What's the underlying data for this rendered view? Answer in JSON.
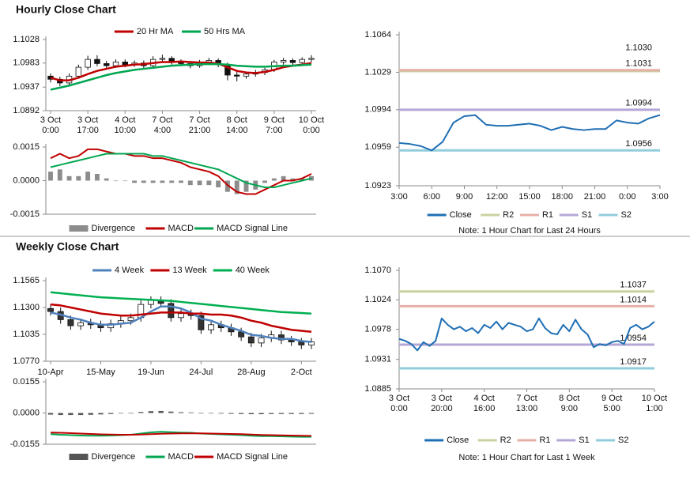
{
  "headings": [
    "Hourly Close Chart",
    "Weekly Close Chart"
  ],
  "chart_data": [
    {
      "type": "candlestick",
      "legend": "top",
      "categories": [
        [
          "3 Oct",
          "0:00"
        ],
        null,
        null,
        null,
        [
          "3 Oct",
          "17:00"
        ],
        null,
        null,
        null,
        [
          "4 Oct",
          "10:00"
        ],
        null,
        null,
        null,
        [
          "7 Oct",
          "4:00"
        ],
        null,
        null,
        null,
        [
          "7 Oct",
          "21:00"
        ],
        null,
        null,
        null,
        [
          "8 Oct",
          "14:00"
        ],
        null,
        null,
        null,
        [
          "9 Oct",
          "7:00"
        ],
        null,
        null,
        null,
        [
          "10 Oct",
          "0:00"
        ]
      ],
      "open": [
        1.0958,
        1.0952,
        1.0945,
        1.0958,
        1.0975,
        1.099,
        1.0982,
        1.0978,
        1.0985,
        1.098,
        1.0983,
        1.0978,
        1.099,
        1.0992,
        1.0985,
        1.0982,
        1.0978,
        1.0984,
        1.0988,
        1.098,
        1.096,
        1.0958,
        1.0962,
        1.0965,
        1.097,
        1.0985,
        1.0988,
        1.0984,
        1.099
      ],
      "high": [
        1.0963,
        1.0957,
        1.0963,
        1.098,
        1.0997,
        1.0998,
        1.0987,
        1.099,
        1.099,
        1.0988,
        1.0988,
        1.0996,
        1.0999,
        1.0996,
        1.099,
        1.0987,
        1.0989,
        1.0993,
        1.0992,
        1.0984,
        1.0966,
        1.0967,
        1.097,
        1.0974,
        1.0989,
        1.0993,
        1.0992,
        1.0994,
        1.0998
      ],
      "low": [
        1.0946,
        1.0939,
        1.0941,
        1.0953,
        1.097,
        1.0977,
        1.0973,
        1.0974,
        1.0975,
        1.0976,
        1.0973,
        1.0974,
        1.0985,
        1.098,
        1.0977,
        1.0973,
        1.0974,
        1.0979,
        1.0975,
        1.095,
        1.0948,
        1.0953,
        1.0957,
        1.096,
        1.0966,
        1.098,
        1.0979,
        1.0979,
        1.0985
      ],
      "close": [
        1.0952,
        1.0945,
        1.0958,
        1.0975,
        1.099,
        1.0982,
        1.0978,
        1.0985,
        1.098,
        1.0983,
        1.0978,
        1.099,
        1.0992,
        1.0985,
        1.0982,
        1.0978,
        1.0984,
        1.0988,
        1.098,
        1.096,
        1.0958,
        1.0962,
        1.0965,
        1.097,
        1.0985,
        1.0988,
        1.0984,
        1.099,
        1.0992
      ],
      "up_color": "#ffffff",
      "down_color": "#111111",
      "series": [
        {
          "name": "20 Hr MA",
          "color": "#c00000",
          "values": [
            1.0955,
            1.095,
            1.095,
            1.0955,
            1.0962,
            1.0968,
            1.0972,
            1.0976,
            1.0978,
            1.098,
            1.0981,
            1.0983,
            1.0985,
            1.0985,
            1.0986,
            1.0985,
            1.0984,
            1.0984,
            1.0982,
            1.0975,
            1.0968,
            1.0965,
            1.0964,
            1.0966,
            1.097,
            1.0975,
            1.0978,
            1.098,
            1.0983
          ]
        },
        {
          "name": "50 Hrs MA",
          "color": "#00a651",
          "values": [
            1.0932,
            1.0936,
            1.094,
            1.0945,
            1.095,
            1.0955,
            1.096,
            1.0964,
            1.0967,
            1.097,
            1.0972,
            1.0974,
            1.0976,
            1.0978,
            1.0979,
            1.098,
            1.0981,
            1.0981,
            1.0981,
            1.098,
            1.0978,
            1.0977,
            1.0976,
            1.0976,
            1.0977,
            1.0978,
            1.0978,
            1.0979,
            1.098
          ]
        }
      ],
      "ylim": [
        1.0892,
        1.1028
      ],
      "yticks": [
        1.0892,
        1.0937,
        1.0983,
        1.1028
      ]
    },
    {
      "type": "combo",
      "legend": "bottom",
      "series": [
        {
          "name": "Divergence",
          "type": "bar",
          "color": "#8c8c8c",
          "values": [
            0.0004,
            0.0005,
            0.0002,
            0.0002,
            0.0004,
            0.0003,
            0.0001,
            0,
            0,
            -0.0001,
            -0.0001,
            -0.0001,
            -0.0001,
            -0.0001,
            -0.0001,
            -0.0002,
            -0.0002,
            -0.0002,
            -0.0003,
            -0.0005,
            -0.0006,
            -0.0005,
            -0.0004,
            -0.0001,
            0.0001,
            0.0002,
            0.0001,
            0.0001,
            0.0002
          ]
        },
        {
          "name": "MACD",
          "type": "line",
          "color": "#c00000",
          "values": [
            0.001,
            0.0012,
            0.001,
            0.0011,
            0.0014,
            0.0014,
            0.0013,
            0.0012,
            0.0012,
            0.0011,
            0.0011,
            0.001,
            0.001,
            0.0009,
            0.0008,
            0.0006,
            0.0005,
            0.0004,
            0.0002,
            -0.0002,
            -0.0005,
            -0.0006,
            -0.0006,
            -0.0004,
            -0.0002,
            0,
            0,
            0.0001,
            0.0003
          ]
        },
        {
          "name": "MACD Signal Line",
          "type": "line",
          "color": "#00a651",
          "values": [
            0.0006,
            0.0007,
            0.0008,
            0.0009,
            0.001,
            0.0011,
            0.0012,
            0.0012,
            0.0012,
            0.0012,
            0.0012,
            0.0011,
            0.0011,
            0.001,
            0.0009,
            0.0008,
            0.0007,
            0.0006,
            0.0005,
            0.0003,
            0.0001,
            -0.0001,
            -0.0002,
            -0.0003,
            -0.0003,
            -0.0002,
            -0.0001,
            0,
            0.0001
          ]
        }
      ],
      "ylim": [
        -0.0015,
        0.0015
      ],
      "yticks": [
        -0.0015,
        {
          "value": 0,
          "label": "0.0000"
        },
        0.0015
      ]
    },
    {
      "type": "line",
      "legend": "bottom",
      "note": "Note: 1 Hour Chart for Last 24 Hours",
      "categories": [
        "3:00",
        null,
        null,
        "6:00",
        null,
        null,
        "9:00",
        null,
        null,
        "12:00",
        null,
        null,
        "15:00",
        null,
        null,
        "18:00",
        null,
        null,
        "21:00",
        null,
        null,
        "0:00",
        null,
        null,
        "3:00"
      ],
      "series": [
        {
          "name": "Close",
          "color": "#1f6fb4",
          "values": [
            1.0963,
            1.0962,
            1.096,
            1.0956,
            1.0964,
            1.0982,
            1.0988,
            1.0989,
            1.098,
            1.0979,
            1.0979,
            1.098,
            1.0981,
            1.0979,
            1.0975,
            1.0978,
            1.0976,
            1.0975,
            1.0976,
            1.0976,
            1.0984,
            1.0982,
            1.0981,
            1.0986,
            1.0989
          ]
        }
      ],
      "levels": [
        {
          "name": "R2",
          "color": "#c9d3a0",
          "value": 1.103,
          "value_label": "1.1030"
        },
        {
          "name": "R1",
          "color": "#e6b0a8",
          "value": 1.1031
        },
        {
          "name": "S1",
          "color": "#b4a7d6",
          "value": 1.0994
        },
        {
          "name": "S2",
          "color": "#92cddc",
          "value": 1.0956
        }
      ],
      "ylim": [
        1.0923,
        1.1064
      ],
      "yticks": [
        1.0923,
        1.0959,
        1.0994,
        1.1029,
        1.1064
      ]
    },
    {
      "type": "candlestick",
      "legend": "top",
      "categories": [
        "10-Apr",
        null,
        null,
        null,
        null,
        "15-May",
        null,
        null,
        null,
        null,
        "19-Jun",
        null,
        null,
        null,
        null,
        "24-Jul",
        null,
        null,
        null,
        null,
        "28-Aug",
        null,
        null,
        null,
        null,
        "2-Oct",
        null
      ],
      "open": [
        1.129,
        1.126,
        1.118,
        1.112,
        1.115,
        1.113,
        1.11,
        1.114,
        1.117,
        1.12,
        1.133,
        1.137,
        1.134,
        1.12,
        1.124,
        1.122,
        1.108,
        1.113,
        1.11,
        1.106,
        1.101,
        1.095,
        1.1,
        1.103,
        1.098,
        1.096,
        1.093
      ],
      "high": [
        1.133,
        1.13,
        1.122,
        1.119,
        1.119,
        1.117,
        1.118,
        1.121,
        1.124,
        1.137,
        1.141,
        1.141,
        1.138,
        1.128,
        1.128,
        1.126,
        1.117,
        1.117,
        1.114,
        1.11,
        1.105,
        1.104,
        1.107,
        1.107,
        1.102,
        1.1,
        1.1
      ],
      "low": [
        1.122,
        1.114,
        1.108,
        1.108,
        1.109,
        1.106,
        1.106,
        1.11,
        1.113,
        1.116,
        1.129,
        1.13,
        1.116,
        1.116,
        1.118,
        1.104,
        1.104,
        1.106,
        1.102,
        1.097,
        1.091,
        1.091,
        1.096,
        1.094,
        1.092,
        1.089,
        1.089
      ],
      "close": [
        1.126,
        1.118,
        1.112,
        1.115,
        1.113,
        1.11,
        1.114,
        1.117,
        1.12,
        1.133,
        1.137,
        1.134,
        1.12,
        1.124,
        1.122,
        1.108,
        1.113,
        1.11,
        1.106,
        1.101,
        1.095,
        1.1,
        1.103,
        1.098,
        1.096,
        1.093,
        1.096
      ],
      "up_color": "#ffffff",
      "down_color": "#333333",
      "series": [
        {
          "name": "4 Week",
          "color": "#4f81bd",
          "values": [
            1.125,
            1.123,
            1.12,
            1.118,
            1.115,
            1.113,
            1.113,
            1.114,
            1.115,
            1.12,
            1.126,
            1.131,
            1.131,
            1.129,
            1.125,
            1.119,
            1.117,
            1.113,
            1.11,
            1.107,
            1.103,
            1.102,
            1.1,
            1.099,
            1.099,
            1.097,
            1.096
          ]
        },
        {
          "name": "13 Week",
          "color": "#c00000",
          "values": [
            1.133,
            1.132,
            1.13,
            1.128,
            1.126,
            1.124,
            1.123,
            1.122,
            1.122,
            1.123,
            1.124,
            1.125,
            1.125,
            1.125,
            1.124,
            1.124,
            1.123,
            1.123,
            1.122,
            1.12,
            1.117,
            1.115,
            1.112,
            1.11,
            1.108,
            1.107,
            1.106
          ]
        },
        {
          "name": "40 Week",
          "color": "#00b050",
          "values": [
            1.145,
            1.144,
            1.143,
            1.142,
            1.141,
            1.14,
            1.1395,
            1.139,
            1.1385,
            1.138,
            1.1375,
            1.137,
            1.1365,
            1.1355,
            1.1345,
            1.1335,
            1.1325,
            1.1315,
            1.1305,
            1.1295,
            1.1285,
            1.1275,
            1.1265,
            1.1255,
            1.125,
            1.1245,
            1.124
          ]
        }
      ],
      "ylim": [
        1.077,
        1.1565
      ],
      "yticks": [
        {
          "value": 1.077,
          "label": "1.0770"
        },
        1.1035,
        {
          "value": 1.13,
          "label": "1.1300"
        },
        1.1565
      ]
    },
    {
      "type": "combo",
      "legend": "bottom",
      "series": [
        {
          "name": "Divergence",
          "type": "bar",
          "color": "#555555",
          "values": [
            -0.0008,
            -0.001,
            -0.001,
            -0.001,
            -0.0009,
            -0.0007,
            -0.0005,
            -0.0002,
            0,
            0.0005,
            0.0009,
            0.001,
            0.0007,
            0.0004,
            0.0003,
            -0.0001,
            -0.0002,
            -0.0003,
            -0.0004,
            -0.0005,
            -0.0006,
            -0.0006,
            -0.0005,
            -0.0005,
            -0.0005,
            -0.0005,
            -0.0004
          ]
        },
        {
          "name": "MACD",
          "type": "line",
          "color": "#00a651",
          "values": [
            -0.0105,
            -0.0108,
            -0.011,
            -0.0112,
            -0.0113,
            -0.0113,
            -0.0112,
            -0.011,
            -0.0108,
            -0.0102,
            -0.0096,
            -0.0093,
            -0.0095,
            -0.0097,
            -0.0098,
            -0.0102,
            -0.0104,
            -0.0106,
            -0.0108,
            -0.011,
            -0.0113,
            -0.0115,
            -0.0115,
            -0.0116,
            -0.0117,
            -0.0118,
            -0.0118
          ]
        },
        {
          "name": "MACD Signal Line",
          "type": "line",
          "color": "#c00000",
          "values": [
            -0.0097,
            -0.0098,
            -0.01,
            -0.0102,
            -0.0104,
            -0.0106,
            -0.0107,
            -0.0108,
            -0.0108,
            -0.0107,
            -0.0105,
            -0.0103,
            -0.0102,
            -0.0101,
            -0.0101,
            -0.0101,
            -0.0102,
            -0.0103,
            -0.0104,
            -0.0105,
            -0.0107,
            -0.0109,
            -0.011,
            -0.0111,
            -0.0112,
            -0.0113,
            -0.0114
          ]
        }
      ],
      "ylim": [
        -0.0155,
        0.0155
      ],
      "yticks": [
        -0.0155,
        {
          "value": 0,
          "label": "0.0000"
        },
        0.0155
      ]
    },
    {
      "type": "line",
      "legend": "bottom",
      "note": "Note: 1 Hour Chart for Last 1 Week",
      "categories": [
        [
          "3 Oct",
          "0:00"
        ],
        null,
        null,
        null,
        null,
        null,
        null,
        [
          "3 Oct",
          "20:00"
        ],
        null,
        null,
        null,
        null,
        null,
        null,
        [
          "4 Oct",
          "16:00"
        ],
        null,
        null,
        null,
        null,
        null,
        null,
        [
          "7 Oct",
          "13:00"
        ],
        null,
        null,
        null,
        null,
        null,
        null,
        [
          "8 Oct",
          "9:00"
        ],
        null,
        null,
        null,
        null,
        null,
        null,
        [
          "9 Oct",
          "5:00"
        ],
        null,
        null,
        null,
        null,
        null,
        null,
        [
          "10 Oct",
          "1:00"
        ]
      ],
      "series": [
        {
          "name": "Close",
          "color": "#1f6fb4",
          "values": [
            1.0963,
            1.096,
            1.0955,
            1.0945,
            1.0958,
            1.0952,
            1.096,
            1.0995,
            1.0985,
            1.0978,
            1.0982,
            1.0975,
            1.098,
            1.0972,
            1.0985,
            1.098,
            1.099,
            1.0978,
            1.0988,
            1.0985,
            1.0982,
            1.0975,
            1.0978,
            1.0995,
            1.098,
            1.0972,
            1.097,
            1.0985,
            1.0975,
            1.0993,
            1.0978,
            1.097,
            1.095,
            1.0955,
            1.0953,
            1.0958,
            1.096,
            1.0955,
            1.098,
            1.0985,
            1.0978,
            1.0982,
            1.099
          ]
        }
      ],
      "levels": [
        {
          "name": "R2",
          "color": "#c9d3a0",
          "value": 1.1037
        },
        {
          "name": "R1",
          "color": "#e6b0a8",
          "value": 1.1014
        },
        {
          "name": "S1",
          "color": "#b4a7d6",
          "value": 1.0954
        },
        {
          "name": "S2",
          "color": "#92cddc",
          "value": 1.0917
        }
      ],
      "ylim": [
        1.0885,
        1.107
      ],
      "yticks": [
        1.0885,
        1.0931,
        1.0978,
        1.1024,
        {
          "value": 1.107,
          "label": "1.1070"
        }
      ]
    }
  ]
}
